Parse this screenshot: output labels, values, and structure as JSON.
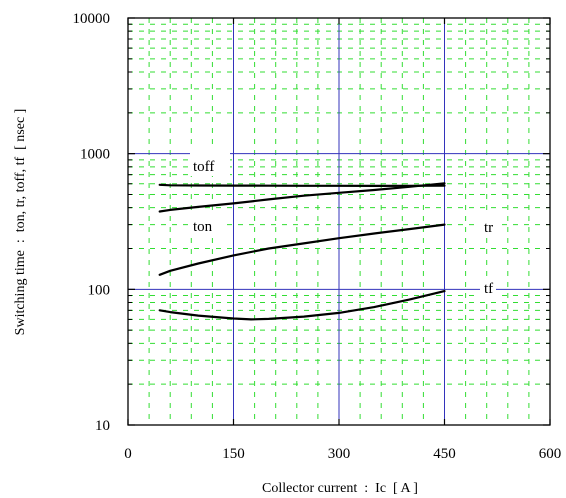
{
  "chart_data": {
    "type": "line",
    "title": "",
    "xlabel": "Collector current  :  Ic  [ A ]",
    "ylabel": "Switching time  :  ton, tr, toff, tf  [ nsec ]",
    "xlim": [
      0,
      600
    ],
    "ylim": [
      10,
      10000
    ],
    "y_scale": "log",
    "x_ticks": [
      "0",
      "150",
      "300",
      "450",
      "600"
    ],
    "y_ticks": [
      "10",
      "100",
      "1000",
      "10000"
    ],
    "grid": true,
    "series": [
      {
        "name": "toff",
        "x": [
          45,
          60,
          100,
          150,
          200,
          250,
          300,
          350,
          400,
          450
        ],
        "y": [
          590,
          585,
          583,
          582,
          581,
          580,
          580,
          579,
          580,
          582
        ]
      },
      {
        "name": "ton",
        "x": [
          45,
          60,
          100,
          150,
          200,
          250,
          300,
          350,
          400,
          450
        ],
        "y": [
          375,
          385,
          405,
          430,
          460,
          490,
          515,
          540,
          570,
          605
        ]
      },
      {
        "name": "tr",
        "x": [
          45,
          60,
          100,
          150,
          200,
          250,
          300,
          350,
          400,
          450
        ],
        "y": [
          128,
          137,
          155,
          178,
          200,
          218,
          238,
          258,
          278,
          300
        ]
      },
      {
        "name": "tf",
        "x": [
          45,
          60,
          100,
          150,
          175,
          200,
          250,
          300,
          350,
          400,
          450
        ],
        "y": [
          70,
          68,
          64,
          61,
          60,
          60.5,
          63,
          67,
          74,
          84,
          97
        ]
      }
    ]
  },
  "colors": {
    "major_grid": "#3333bb",
    "minor_grid": "#33dd33",
    "axis": "#000000",
    "curve": "#000000"
  }
}
